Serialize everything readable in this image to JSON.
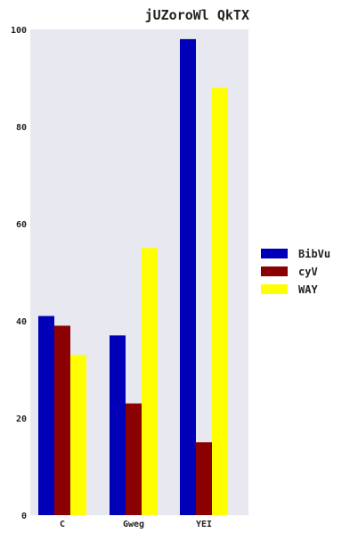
{
  "chart_data": {
    "type": "bar",
    "title": "jUZoroWl QkTX",
    "xlabel": "",
    "ylabel": "",
    "categories": [
      "C",
      "Gweg",
      "YEI"
    ],
    "series": [
      {
        "name": "BibVu",
        "values": [
          41,
          37,
          98
        ],
        "color": "#0000b8"
      },
      {
        "name": "cyV",
        "values": [
          39,
          23,
          15
        ],
        "color": "#8b0000"
      },
      {
        "name": "WAY",
        "values": [
          33,
          55,
          88
        ],
        "color": "#ffff00"
      }
    ],
    "ylim": [
      0,
      100
    ],
    "yticks": [
      0,
      20,
      40,
      60,
      80,
      100
    ],
    "grid": false,
    "legend_position": "right",
    "plot_background": "#e8e8f0"
  }
}
